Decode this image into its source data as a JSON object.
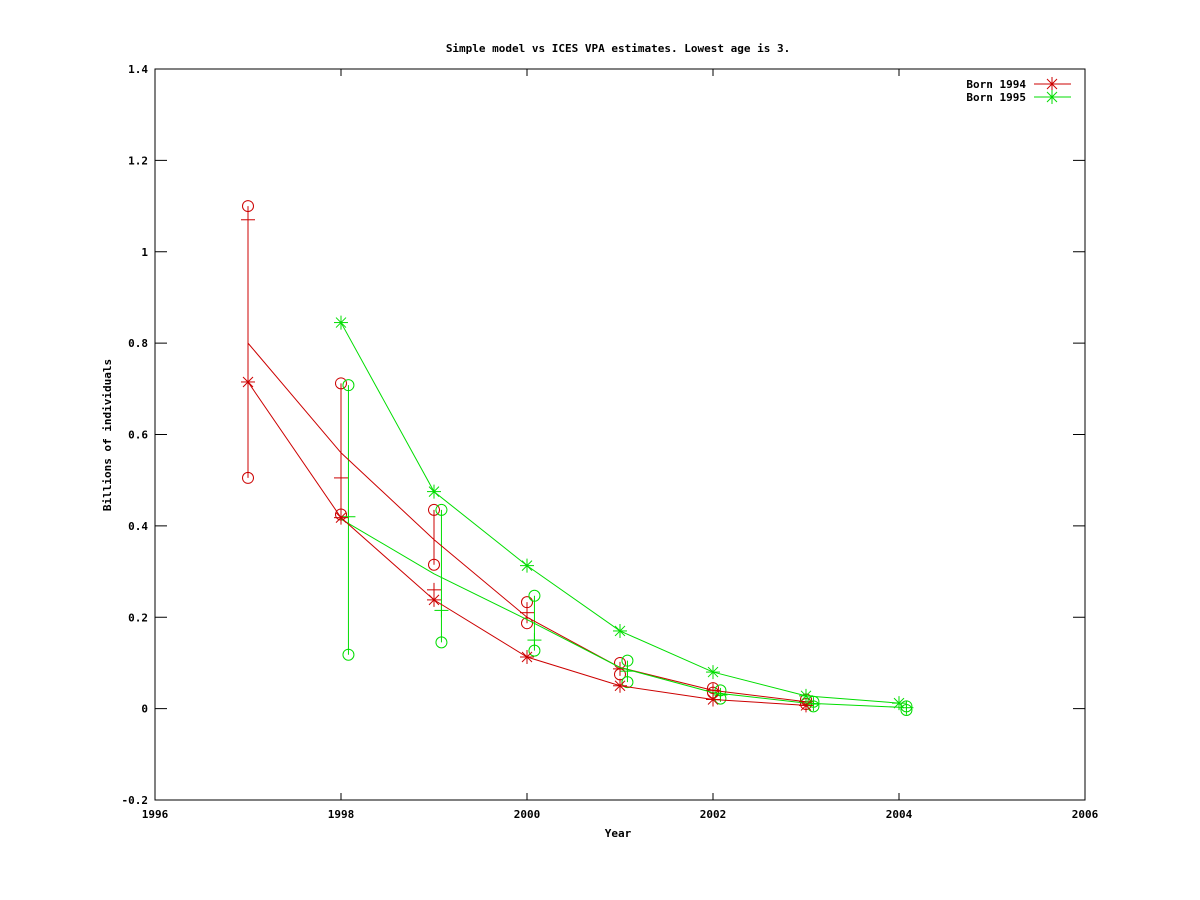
{
  "chart_data": {
    "type": "line",
    "title": "Simple model vs ICES VPA estimates. Lowest age is 3.",
    "xlabel": "Year",
    "ylabel": "Billions of individuals",
    "xlim": [
      1996,
      2006
    ],
    "ylim": [
      -0.2,
      1.4
    ],
    "x_ticks": [
      "1996",
      "1998",
      "2000",
      "2002",
      "2004",
      "2006"
    ],
    "y_ticks": [
      "-0.2",
      "0",
      "0.2",
      "0.4",
      "0.6",
      "0.8",
      "1",
      "1.2",
      "1.4"
    ],
    "grid": false,
    "legend_position": "top-right",
    "series": [
      {
        "name": "Born 1994",
        "color": "#cc0000",
        "marker": "star",
        "x": [
          1997,
          1998,
          1999,
          2000,
          2001,
          2002,
          2003
        ],
        "values": [
          0.715,
          0.418,
          0.238,
          0.113,
          0.05,
          0.02,
          0.007
        ]
      },
      {
        "name": "Born 1995",
        "color": "#00dd00",
        "marker": "star",
        "x": [
          1998,
          1999,
          2000,
          2001,
          2002,
          2003,
          2004
        ],
        "values": [
          0.845,
          0.475,
          0.313,
          0.17,
          0.08,
          0.028,
          0.012
        ]
      }
    ],
    "model_lines": [
      {
        "color": "#cc0000",
        "x": [
          1997,
          1998,
          1999,
          2000,
          2001,
          2002,
          2003
        ],
        "values": [
          0.8,
          0.56,
          0.37,
          0.2,
          0.09,
          0.04,
          0.015
        ]
      },
      {
        "color": "#00dd00",
        "x": [
          1998,
          1999,
          2000,
          2001,
          2002,
          2003,
          2004
        ],
        "values": [
          0.415,
          0.295,
          0.195,
          0.09,
          0.035,
          0.012,
          0.003
        ]
      }
    ],
    "interval_bars": [
      {
        "color": "#cc0000",
        "x": 1997,
        "low": 0.505,
        "high": 1.1,
        "mid": 1.07
      },
      {
        "color": "#cc0000",
        "x": 1998,
        "low": 0.425,
        "high": 0.712,
        "mid": 0.505
      },
      {
        "color": "#cc0000",
        "x": 1999,
        "low": 0.315,
        "high": 0.435,
        "mid": 0.26
      },
      {
        "color": "#cc0000",
        "x": 2000,
        "low": 0.187,
        "high": 0.233,
        "mid": 0.21
      },
      {
        "color": "#cc0000",
        "x": 2001,
        "low": 0.075,
        "high": 0.1,
        "mid": 0.087
      },
      {
        "color": "#cc0000",
        "x": 2002,
        "low": 0.035,
        "high": 0.045,
        "mid": 0.04
      },
      {
        "color": "#cc0000",
        "x": 2003,
        "low": 0.01,
        "high": 0.02,
        "mid": 0.015
      },
      {
        "color": "#00dd00",
        "x": 1998.08,
        "low": 0.118,
        "high": 0.708,
        "mid": 0.42
      },
      {
        "color": "#00dd00",
        "x": 1999.08,
        "low": 0.145,
        "high": 0.435,
        "mid": 0.215
      },
      {
        "color": "#00dd00",
        "x": 2000.08,
        "low": 0.127,
        "high": 0.247,
        "mid": 0.15
      },
      {
        "color": "#00dd00",
        "x": 2001.08,
        "low": 0.058,
        "high": 0.105,
        "mid": 0.082
      },
      {
        "color": "#00dd00",
        "x": 2002.08,
        "low": 0.022,
        "high": 0.04,
        "mid": 0.03
      },
      {
        "color": "#00dd00",
        "x": 2003.08,
        "low": 0.005,
        "high": 0.015,
        "mid": 0.01
      },
      {
        "color": "#00dd00",
        "x": 2004.08,
        "low": -0.003,
        "high": 0.005,
        "mid": 0.002
      }
    ]
  }
}
